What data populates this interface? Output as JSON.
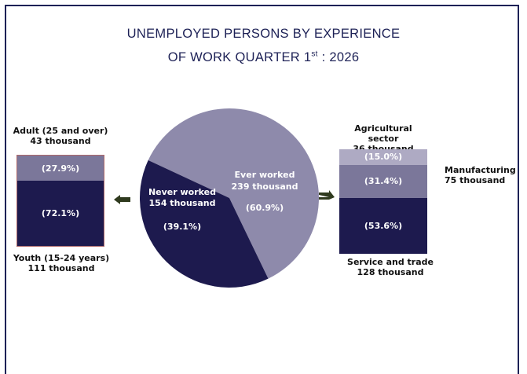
{
  "title_line1": "UNEMPLOYED PERSONS BY EXPERIENCE",
  "title_line2_main": "OF WORK QUARTER 1",
  "title_line2_sup": "st",
  "title_line2_tail": " : 2026",
  "colors": {
    "dark": "#1d1a4e",
    "mid": "#7b779a",
    "light": "#8e8aab",
    "lightest": "#aeaac3",
    "title": "#1d2156",
    "arrow": "#2f3a1e"
  },
  "chart_data": [
    {
      "type": "pie",
      "slices": [
        {
          "label": "Ever worked",
          "value_text": "239 thousand",
          "value": 239,
          "percent": 60.9,
          "percent_text": "(60.9%)",
          "color": "#8e8aab"
        },
        {
          "label": "Never worked",
          "value_text": "154 thousand",
          "value": 154,
          "percent": 39.1,
          "percent_text": "(39.1%)",
          "color": "#1d1a4e"
        }
      ]
    },
    {
      "type": "bar",
      "stacked": true,
      "categories": [
        "Never worked"
      ],
      "segments": [
        {
          "name": "Adult (25 and over)",
          "value_text": "43 thousand",
          "value": 43,
          "percent": 27.9,
          "percent_text": "(27.9%)",
          "color": "#7b779a"
        },
        {
          "name": "Youth (15-24 years)",
          "value_text": "111 thousand",
          "value": 111,
          "percent": 72.1,
          "percent_text": "(72.1%)",
          "color": "#1d1a4e"
        }
      ]
    },
    {
      "type": "bar",
      "stacked": true,
      "categories": [
        "Ever worked"
      ],
      "segments": [
        {
          "name": "Agricultural sector",
          "value_text": "36 thousand",
          "value": 36,
          "percent": 15.0,
          "percent_text": "(15.0%)",
          "color": "#aeaac3"
        },
        {
          "name": "Manufacturing",
          "value_text": "75 thousand",
          "value": 75,
          "percent": 31.4,
          "percent_text": "(31.4%)",
          "color": "#7b779a"
        },
        {
          "name": "Service and trade",
          "value_text": "128 thousand",
          "value": 128,
          "percent": 53.6,
          "percent_text": "(53.6%)",
          "color": "#1d1a4e"
        }
      ]
    }
  ]
}
